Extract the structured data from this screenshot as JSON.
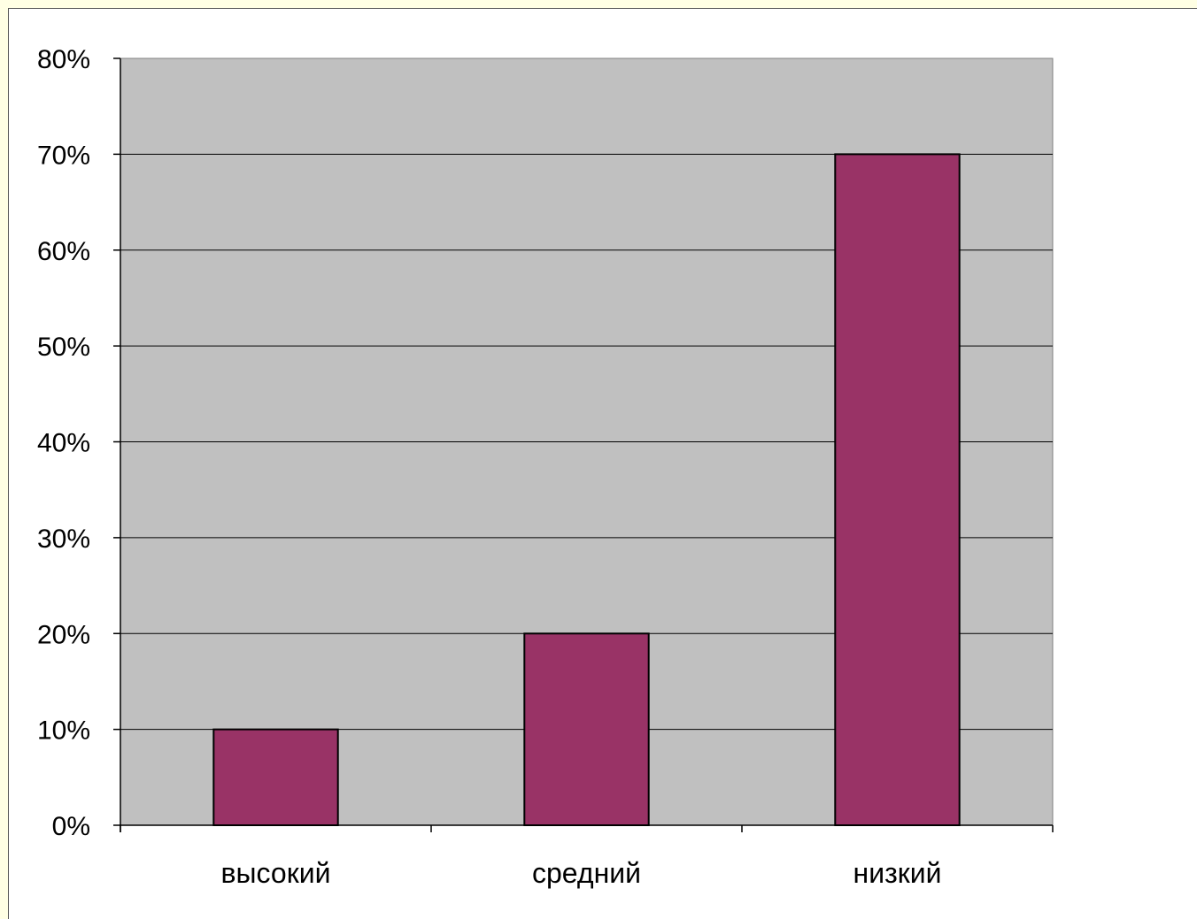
{
  "chart_data": {
    "type": "bar",
    "categories": [
      "высокий",
      "средний",
      "низкий"
    ],
    "values": [
      10,
      20,
      70
    ],
    "ylim": [
      0,
      80
    ],
    "yticks": [
      0,
      10,
      20,
      30,
      40,
      50,
      60,
      70,
      80
    ],
    "ytick_labels": [
      "0%",
      "10%",
      "20%",
      "30%",
      "40%",
      "50%",
      "60%",
      "70%",
      "80%"
    ],
    "title": "",
    "xlabel": "",
    "ylabel": "",
    "grid": true,
    "legend": "none",
    "colors": {
      "bar": "#993366",
      "plot_area": "#c0c0c0",
      "page_border": "#ffffe4"
    }
  }
}
